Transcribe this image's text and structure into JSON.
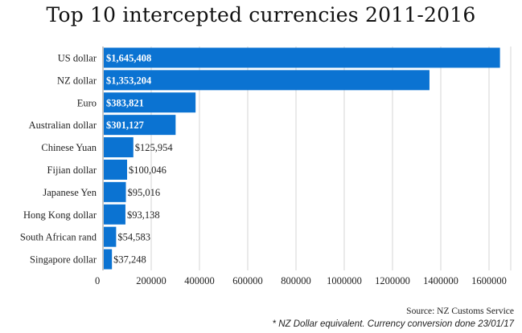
{
  "chart_data": {
    "type": "bar",
    "orientation": "horizontal",
    "title": "Top 10 intercepted currencies 2011-2016",
    "categories": [
      "US dollar",
      "NZ dollar",
      "Euro",
      "Australian dollar",
      "Chinese Yuan",
      "Fijian dollar",
      "Japanese Yen",
      "Hong Kong dollar",
      "South African rand",
      "Singapore dollar"
    ],
    "values": [
      1645408,
      1353204,
      383821,
      301127,
      125954,
      100046,
      95016,
      93138,
      54583,
      37248
    ],
    "value_labels": [
      "$1,645,408",
      "$1,353,204",
      "$383,821",
      "$301,127",
      "$125,954",
      "$100,046",
      "$95,016",
      "$93,138",
      "$54,583",
      "$37,248"
    ],
    "xticks": [
      0,
      200000,
      400000,
      600000,
      800000,
      1000000,
      1200000,
      1400000,
      1600000
    ],
    "xlim": [
      0,
      1690000
    ],
    "grid": true,
    "bar_color": "#0b73d2",
    "source": "Source: NZ Customs Service",
    "footnote": "* NZ Dollar equivalent. Currency conversion done 23/01/17"
  }
}
